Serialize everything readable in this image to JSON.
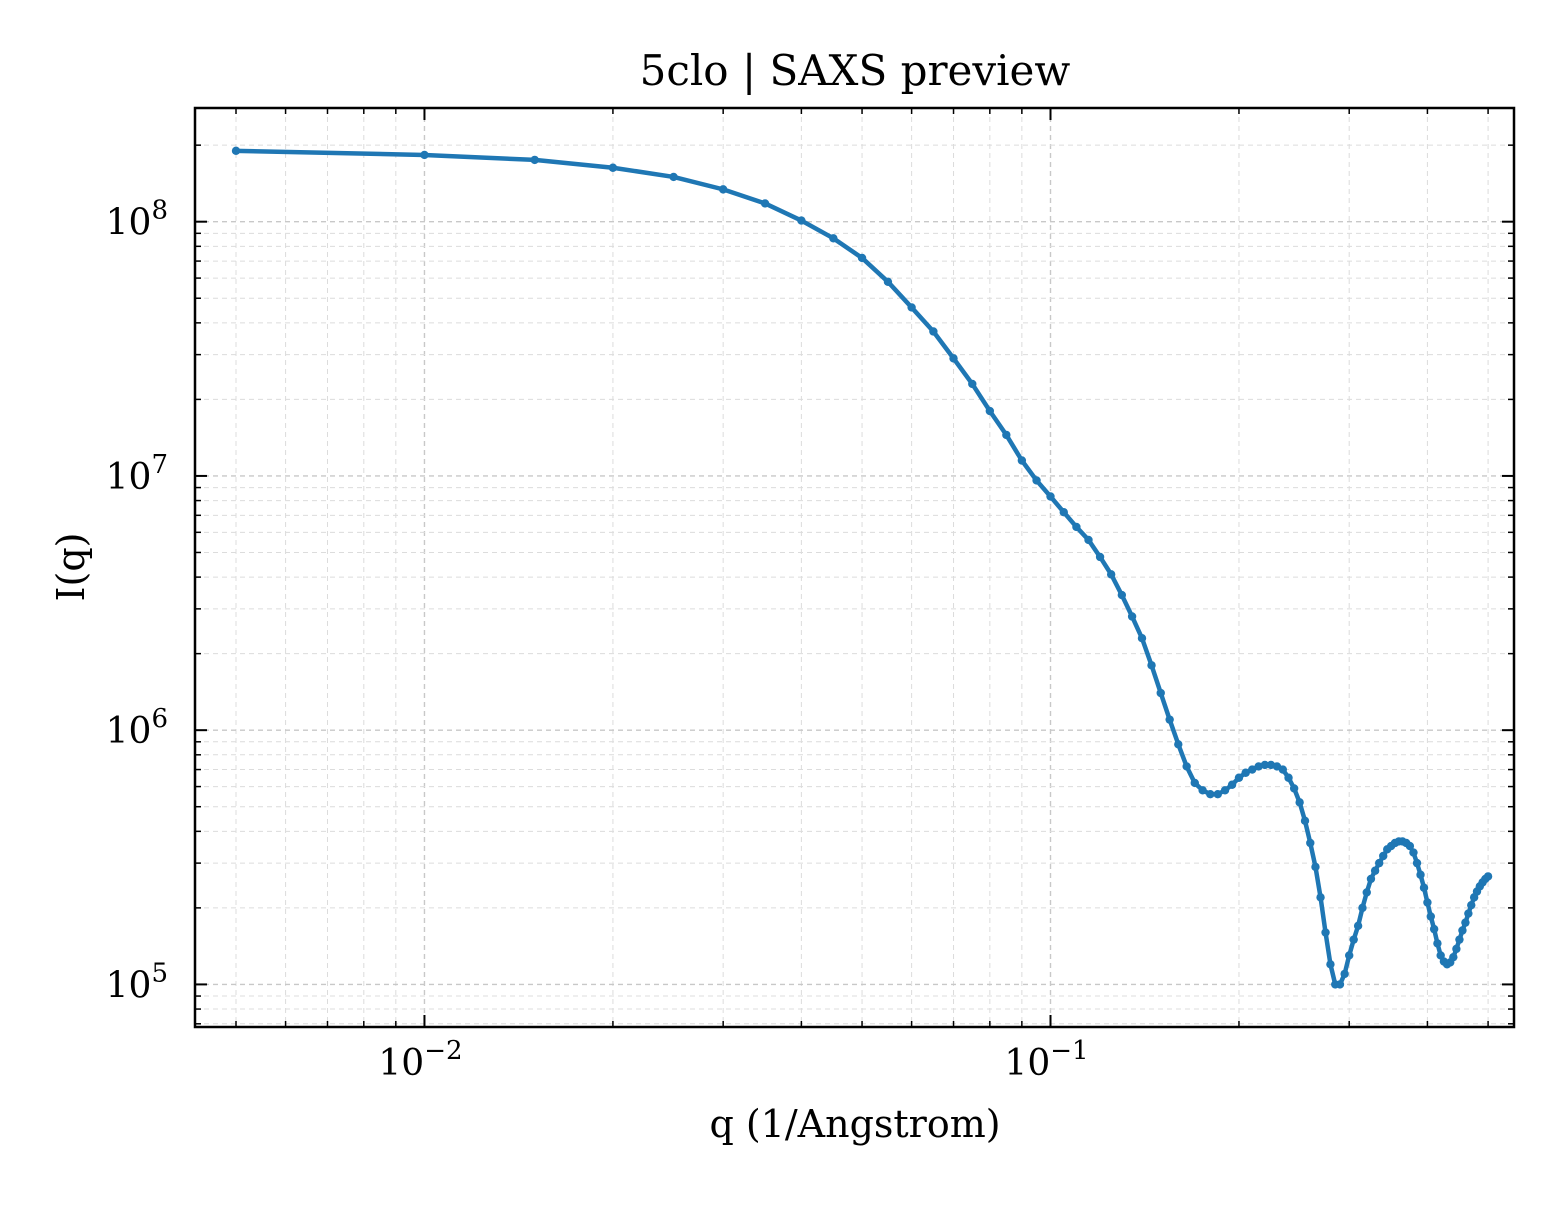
{
  "chart_data": {
    "type": "line",
    "title": "5clo | SAXS preview",
    "xlabel": "q (1/Angstrom)",
    "ylabel": "I(q)",
    "xscale": "log",
    "yscale": "log",
    "xlim": [
      0.0043,
      0.55
    ],
    "ylim": [
      68000,
      280000000
    ],
    "grid": true,
    "x_ticks": [
      {
        "value": 0.01,
        "base": "10",
        "exp": "−2"
      },
      {
        "value": 0.1,
        "base": "10",
        "exp": "−1"
      }
    ],
    "y_ticks": [
      {
        "value": 100000,
        "base": "10",
        "exp": "5"
      },
      {
        "value": 1000000,
        "base": "10",
        "exp": "6"
      },
      {
        "value": 10000000,
        "base": "10",
        "exp": "7"
      },
      {
        "value": 100000000,
        "base": "10",
        "exp": "8"
      }
    ],
    "series": [
      {
        "color": "#1f77b4",
        "x": [
          0.005,
          0.01,
          0.015,
          0.02,
          0.025,
          0.03,
          0.035,
          0.04,
          0.045,
          0.05,
          0.055,
          0.06,
          0.065,
          0.07,
          0.075,
          0.08,
          0.085,
          0.09,
          0.095,
          0.1,
          0.105,
          0.11,
          0.115,
          0.12,
          0.125,
          0.13,
          0.135,
          0.14,
          0.145,
          0.15,
          0.155,
          0.16,
          0.165,
          0.17,
          0.175,
          0.18,
          0.185,
          0.19,
          0.195,
          0.2,
          0.205,
          0.21,
          0.215,
          0.22,
          0.225,
          0.23,
          0.235,
          0.24,
          0.245,
          0.25,
          0.255,
          0.26,
          0.265,
          0.27,
          0.275,
          0.28,
          0.285,
          0.29,
          0.295,
          0.3,
          0.305,
          0.31,
          0.315,
          0.32,
          0.325,
          0.33,
          0.335,
          0.34,
          0.345,
          0.35,
          0.355,
          0.36,
          0.365,
          0.37,
          0.375,
          0.38,
          0.385,
          0.39,
          0.395,
          0.4,
          0.405,
          0.41,
          0.415,
          0.42,
          0.425,
          0.43,
          0.435,
          0.44,
          0.445,
          0.45,
          0.455,
          0.46,
          0.465,
          0.47,
          0.475,
          0.48,
          0.485,
          0.49,
          0.495,
          0.5
        ],
        "y": [
          190000000,
          183000000,
          175000000,
          163000000,
          150000000,
          134000000,
          118000000,
          101000000,
          86000000,
          72000000,
          58000000,
          46000000,
          37000000,
          29000000,
          23000000,
          18000000,
          14500000,
          11500000,
          9600000,
          8300000,
          7200000,
          6300000,
          5600000,
          4800000,
          4100000,
          3400000,
          2800000,
          2300000,
          1800000,
          1400000,
          1100000,
          880000,
          720000,
          620000,
          580000,
          560000,
          560000,
          580000,
          610000,
          650000,
          680000,
          700000,
          720000,
          730000,
          730000,
          720000,
          700000,
          650000,
          590000,
          520000,
          440000,
          360000,
          290000,
          220000,
          160000,
          120000,
          100000,
          100000,
          110000,
          130000,
          150000,
          170000,
          200000,
          230000,
          260000,
          280000,
          300000,
          320000,
          340000,
          350000,
          360000,
          365000,
          365000,
          360000,
          350000,
          330000,
          300000,
          270000,
          240000,
          210000,
          185000,
          165000,
          145000,
          130000,
          123000,
          120000,
          122000,
          128000,
          138000,
          150000,
          163000,
          175000,
          190000,
          205000,
          220000,
          232000,
          243000,
          252000,
          260000,
          266000
        ]
      }
    ]
  }
}
